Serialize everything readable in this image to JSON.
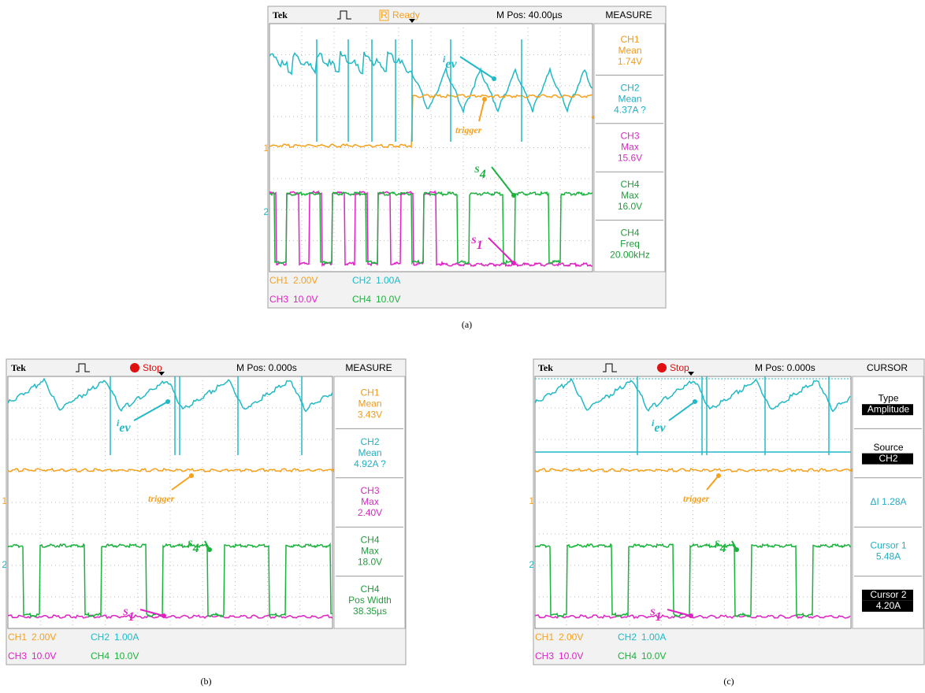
{
  "panels": [
    {
      "caption": "(a)",
      "brand": "Tek",
      "status_badge": "R",
      "status": "Ready",
      "position": "M Pos: 40.00µs",
      "side_title": "MEASURE",
      "side_items": [
        {
          "lines": [
            "CH1",
            "Mean",
            "1.74V"
          ],
          "color": "#ee9b1c"
        },
        {
          "lines": [
            "CH2",
            "Mean",
            "4.37A ?"
          ],
          "color": "#24adc0"
        },
        {
          "lines": [
            "CH3",
            "Max",
            "15.6V"
          ],
          "color": "#d42cc0"
        },
        {
          "lines": [
            "CH4",
            "Max",
            "16.0V"
          ],
          "color": "#1f9e3c"
        },
        {
          "lines": [
            "CH4",
            "Freq",
            "20.00kHz"
          ],
          "color": "#1f9e3c"
        }
      ],
      "scales": [
        [
          "CH1",
          "2.00V"
        ],
        [
          "CH2",
          "1.00A"
        ],
        [
          "CH3",
          "10.0V"
        ],
        [
          "CH4",
          "10.0V"
        ]
      ],
      "markers": [
        "1",
        "2"
      ],
      "annotations": [
        {
          "main": "i",
          "sub": "ev"
        },
        {
          "main": "trigger"
        },
        {
          "main": "S",
          "sub": "4"
        },
        {
          "main": "S",
          "sub": "1"
        }
      ]
    },
    {
      "caption": "(b)",
      "brand": "Tek",
      "status": "Stop",
      "position": "M Pos: 0.000s",
      "side_title": "MEASURE",
      "side_items": [
        {
          "lines": [
            "CH1",
            "Mean",
            "3.43V"
          ],
          "color": "#ee9b1c"
        },
        {
          "lines": [
            "CH2",
            "Mean",
            "4.92A ?"
          ],
          "color": "#24adc0"
        },
        {
          "lines": [
            "CH3",
            "Max",
            "2.40V"
          ],
          "color": "#d42cc0"
        },
        {
          "lines": [
            "CH4",
            "Max",
            "18.0V"
          ],
          "color": "#1f9e3c"
        },
        {
          "lines": [
            "CH4",
            "Pos Width",
            "38.35µs"
          ],
          "color": "#1f9e3c"
        }
      ],
      "scales": [
        [
          "CH1",
          "2.00V"
        ],
        [
          "CH2",
          "1.00A"
        ],
        [
          "CH3",
          "10.0V"
        ],
        [
          "CH4",
          "10.0V"
        ]
      ],
      "markers": [
        "1",
        "2"
      ],
      "annotations": [
        {
          "main": "i",
          "sub": "ev"
        },
        {
          "main": "trigger"
        },
        {
          "main": "S",
          "sub": "4"
        },
        {
          "main": "S",
          "sub": "1"
        }
      ]
    },
    {
      "caption": "(c)",
      "brand": "Tek",
      "status": "Stop",
      "position": "M Pos: 0.000s",
      "side_title": "CURSOR",
      "side_items": [
        {
          "lines": [
            "Type",
            "Amplitude"
          ],
          "color": "#000000",
          "highlight": [
            1
          ]
        },
        {
          "lines": [
            "Source",
            "CH2"
          ],
          "color": "#000000",
          "highlight": [
            1
          ]
        },
        {
          "lines": [
            "ΔI 1.28A"
          ],
          "color": "#24adc0"
        },
        {
          "lines": [
            "Cursor 1",
            "5.48A"
          ],
          "color": "#24adc0"
        },
        {
          "lines": [
            "Cursor 2",
            "4.20A"
          ],
          "color": "#000000",
          "highlight": [
            0,
            1
          ]
        }
      ],
      "scales": [
        [
          "CH1",
          "2.00V"
        ],
        [
          "CH2",
          "1.00A"
        ],
        [
          "CH3",
          "10.0V"
        ],
        [
          "CH4",
          "10.0V"
        ]
      ],
      "markers": [
        "1",
        "2"
      ],
      "annotations": [
        {
          "main": "i",
          "sub": "ev"
        },
        {
          "main": "trigger"
        },
        {
          "main": "S",
          "sub": "4"
        },
        {
          "main": "S",
          "sub": "1"
        }
      ]
    }
  ]
}
